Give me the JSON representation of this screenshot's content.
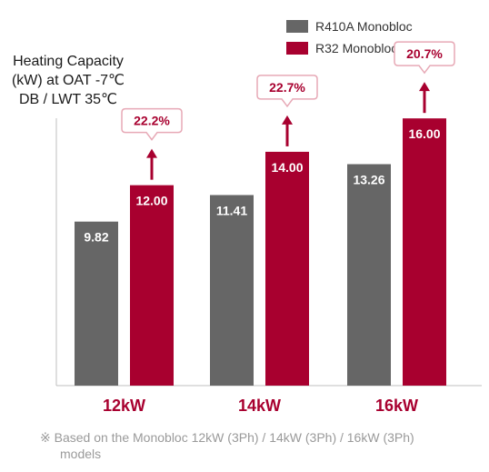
{
  "chart_data": {
    "type": "bar",
    "ylabel": [
      "Heating Capacity",
      "(kW) at OAT -7℃",
      "DB / LWT 35℃"
    ],
    "categories": [
      "12kW",
      "14kW",
      "16kW"
    ],
    "series": [
      {
        "name": "R410A Monobloc",
        "color": "#666666",
        "values": [
          9.82,
          11.41,
          13.26
        ],
        "labels": [
          "9.82",
          "11.41",
          "13.26"
        ]
      },
      {
        "name": "R32 Monobloc",
        "color": "#a8002f",
        "values": [
          12.0,
          14.0,
          16.0
        ],
        "labels": [
          "12.00",
          "14.00",
          "16.00"
        ]
      }
    ],
    "increase_labels": [
      "22.2%",
      "22.7%",
      "20.7%"
    ],
    "ylim": [
      0,
      22
    ],
    "grid": false,
    "legend_position": "top-right"
  },
  "footnote": [
    "※ Based on the Monobloc 12kW (3Ph) / 14kW (3Ph) / 16kW (3Ph)",
    "models"
  ]
}
